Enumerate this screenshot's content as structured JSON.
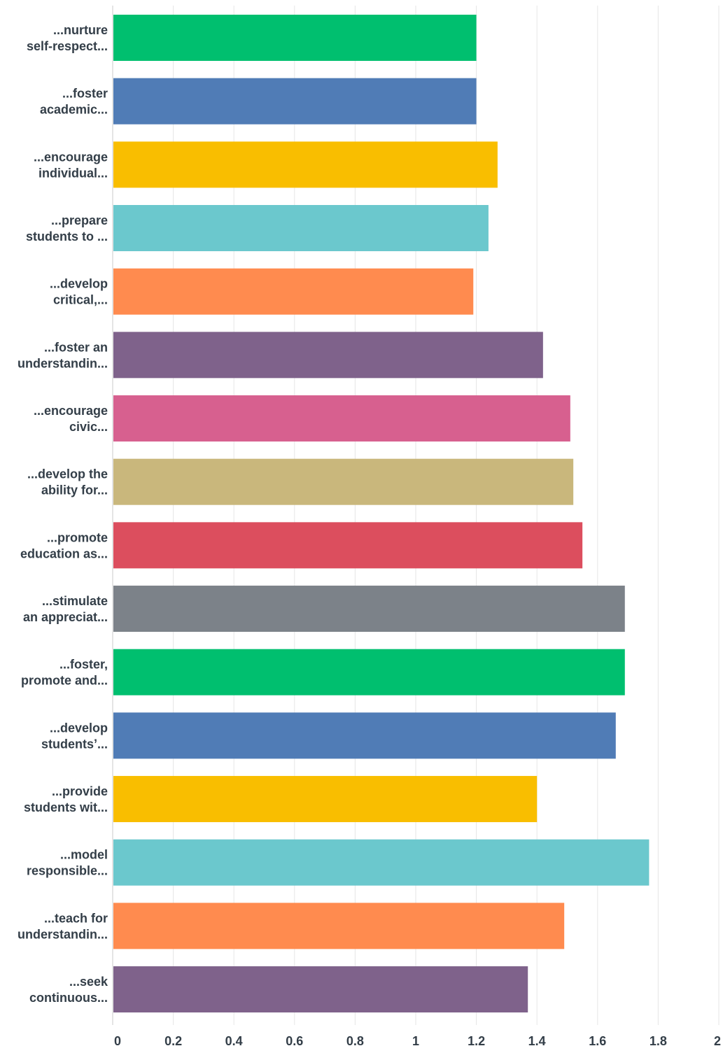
{
  "chart_data": {
    "type": "bar",
    "orientation": "horizontal",
    "title": "",
    "xlabel": "",
    "ylabel": "",
    "xlim": [
      0,
      2
    ],
    "ticks": [
      "0",
      "0.2",
      "0.4",
      "0.6",
      "0.8",
      "1",
      "1.2",
      "1.4",
      "1.6",
      "1.8",
      "2"
    ],
    "grid": true,
    "legend": "none",
    "categories": [
      [
        "...nurture",
        "self-respect..."
      ],
      [
        "...foster",
        "academic..."
      ],
      [
        "...encourage",
        "individual..."
      ],
      [
        "...prepare",
        "students to ..."
      ],
      [
        "...develop",
        "critical,..."
      ],
      [
        "...foster an",
        "understandin..."
      ],
      [
        "...encourage",
        "civic..."
      ],
      [
        "...develop the",
        "ability for..."
      ],
      [
        "...promote",
        "education as..."
      ],
      [
        "...stimulate",
        "an appreciat..."
      ],
      [
        "...foster,",
        "promote and..."
      ],
      [
        "...develop",
        "students’..."
      ],
      [
        "...provide",
        "students wit..."
      ],
      [
        "...model",
        "responsible..."
      ],
      [
        "...teach for",
        "understandin..."
      ],
      [
        "...seek",
        "continuous..."
      ]
    ],
    "values": [
      1.2,
      1.2,
      1.27,
      1.24,
      1.19,
      1.42,
      1.51,
      1.52,
      1.55,
      1.69,
      1.69,
      1.66,
      1.4,
      1.77,
      1.49,
      1.37
    ],
    "colors": [
      "#00bf6f",
      "#507cb6",
      "#f9be00",
      "#6bc8cd",
      "#ff8b4f",
      "#7f628b",
      "#d7608f",
      "#c9b77c",
      "#dc4e5e",
      "#7c8289",
      "#00bf6f",
      "#507cb6",
      "#f9be00",
      "#6bc8cd",
      "#ff8b4f",
      "#7f628b"
    ]
  }
}
